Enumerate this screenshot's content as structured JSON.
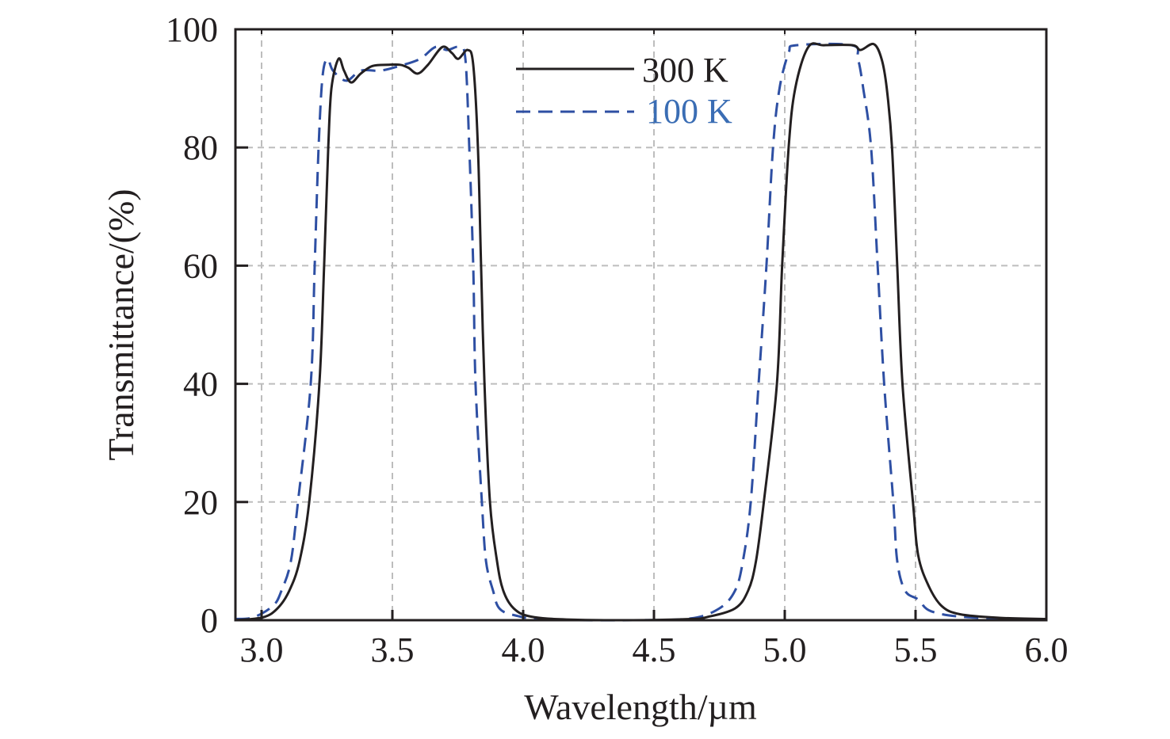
{
  "chart_data": {
    "type": "line",
    "title": "",
    "xlabel": "Wavelength/µm",
    "ylabel": "Transmittance/(%)",
    "xlim": [
      2.9,
      6.0
    ],
    "ylim": [
      0,
      100
    ],
    "xticks": [
      3.0,
      3.5,
      4.0,
      4.5,
      5.0,
      5.5,
      6.0
    ],
    "xtick_labels": [
      "3.0",
      "3.5",
      "4.0",
      "4.5",
      "5.0",
      "5.5",
      "6.0"
    ],
    "yticks": [
      0,
      20,
      40,
      60,
      80,
      100
    ],
    "ytick_labels": [
      "0",
      "20",
      "40",
      "60",
      "80",
      "100"
    ],
    "grid": true,
    "legend_position": "top-center",
    "series": [
      {
        "name": "300 K",
        "color": "#231f20",
        "style": "solid",
        "x": [
          2.9,
          3.006,
          3.061,
          3.106,
          3.145,
          3.182,
          3.221,
          3.239,
          3.255,
          3.267,
          3.294,
          3.315,
          3.342,
          3.379,
          3.424,
          3.485,
          3.53,
          3.561,
          3.597,
          3.636,
          3.691,
          3.727,
          3.752,
          3.788,
          3.809,
          3.827,
          3.839,
          3.852,
          3.873,
          3.9,
          3.924,
          3.964,
          4.03,
          4.18,
          4.42,
          4.64,
          4.7,
          4.81,
          4.86,
          4.89,
          4.92,
          4.97,
          4.99,
          5.015,
          5.04,
          5.09,
          5.15,
          5.26,
          5.29,
          5.34,
          5.37,
          5.39,
          5.41,
          5.43,
          5.45,
          5.49,
          5.51,
          5.55,
          5.6,
          5.67,
          5.82,
          6.0
        ],
        "y": [
          0,
          0.5,
          2,
          5,
          10,
          20,
          40,
          60,
          80,
          90,
          95,
          93,
          91,
          92.5,
          93.8,
          94,
          94,
          93.5,
          92.5,
          94,
          97,
          96,
          95,
          96.5,
          94,
          80,
          60,
          40,
          20,
          10,
          5,
          2,
          0.6,
          0.1,
          0,
          0.2,
          0.5,
          2,
          5,
          10,
          20,
          40,
          60,
          80,
          90,
          97,
          97.3,
          97.3,
          96.5,
          97.5,
          95,
          90,
          80,
          60,
          40,
          20,
          11,
          5.8,
          2.4,
          1,
          0.4,
          0.2
        ]
      },
      {
        "name": "100 K",
        "color": "#2e4fa3",
        "style": "dashed",
        "x": [
          2.9,
          2.97,
          3.045,
          3.076,
          3.112,
          3.139,
          3.188,
          3.203,
          3.218,
          3.233,
          3.252,
          3.273,
          3.324,
          3.379,
          3.454,
          3.527,
          3.606,
          3.664,
          3.709,
          3.755,
          3.779,
          3.794,
          3.809,
          3.818,
          3.842,
          3.858,
          3.885,
          3.909,
          3.97,
          4.09,
          4.42,
          4.64,
          4.75,
          4.81,
          4.84,
          4.87,
          4.9,
          4.93,
          4.955,
          4.98,
          5.015,
          5.045,
          5.257,
          5.28,
          5.3,
          5.33,
          5.355,
          5.38,
          5.415,
          5.43,
          5.46,
          5.51,
          5.56,
          5.7,
          6.0
        ],
        "y": [
          0.2,
          0.5,
          2.5,
          5,
          10,
          20,
          40,
          60,
          80,
          92,
          95,
          93,
          91.3,
          93,
          93,
          93.8,
          95,
          97,
          96.5,
          97,
          95,
          80,
          60,
          40,
          20,
          10,
          5,
          2,
          0.8,
          0.1,
          0,
          0.3,
          2,
          5,
          10,
          20,
          40,
          60,
          80,
          90,
          96,
          97.3,
          97.3,
          95,
          90,
          80,
          60,
          40,
          20,
          10,
          5,
          3.5,
          1.5,
          0.5,
          0.1
        ]
      }
    ]
  }
}
